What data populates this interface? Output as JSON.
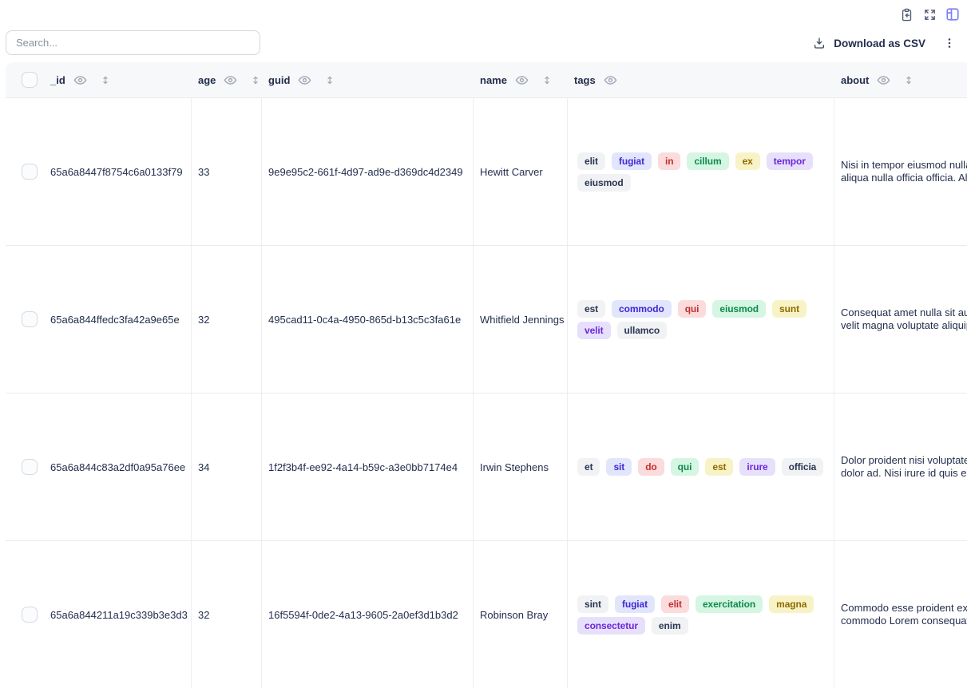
{
  "topbar": {
    "icons": [
      "paste-icon",
      "expand-icon",
      "table-view-icon"
    ],
    "accent_color": "#7c82f5"
  },
  "toolbar": {
    "search_placeholder": "Search...",
    "download_label": "Download as CSV",
    "kebab_icon": "more-options"
  },
  "palette": {
    "gray": {
      "bg": "#f1f2f4",
      "text": "#2b3653"
    },
    "indigo": {
      "bg": "#e1e6fc",
      "text": "#4328d4"
    },
    "red": {
      "bg": "#fbdbdb",
      "text": "#c22f33"
    },
    "green": {
      "bg": "#d5f6e2",
      "text": "#0f8a4d"
    },
    "yellow": {
      "bg": "#f8f3c6",
      "text": "#8f6a00"
    },
    "purple": {
      "bg": "#e7e0fb",
      "text": "#6d28d9"
    }
  },
  "table": {
    "columns": [
      {
        "label": "_id",
        "has_visibility_icon": true,
        "has_sort_icon": true
      },
      {
        "label": "age",
        "has_visibility_icon": true,
        "has_sort_icon": true
      },
      {
        "label": "guid",
        "has_visibility_icon": true,
        "has_sort_icon": true
      },
      {
        "label": "name",
        "has_visibility_icon": true,
        "has_sort_icon": true
      },
      {
        "label": "tags",
        "has_visibility_icon": true,
        "has_sort_icon": false
      },
      {
        "label": "about",
        "has_visibility_icon": true,
        "has_sort_icon": true
      }
    ],
    "rows": [
      {
        "_id": "65a6a8447f8754c6a0133f79",
        "age": "33",
        "guid": "9e9e95c2-661f-4d97-ad9e-d369dc4d2349",
        "name": "Hewitt Carver",
        "tags": [
          {
            "text": "elit",
            "color": "gray"
          },
          {
            "text": "fugiat",
            "color": "indigo"
          },
          {
            "text": "in",
            "color": "red"
          },
          {
            "text": "cillum",
            "color": "green"
          },
          {
            "text": "ex",
            "color": "yellow"
          },
          {
            "text": "tempor",
            "color": "purple"
          },
          {
            "text": "eiusmod",
            "color": "gray"
          }
        ],
        "about": "Nisi in tempor eiusmod nulla\naliqua nulla officia officia. Aliqua"
      },
      {
        "_id": "65a6a844ffedc3fa42a9e65e",
        "age": "32",
        "guid": "495cad11-0c4a-4950-865d-b13c5c3fa61e",
        "name": "Whitfield Jennings",
        "tags": [
          {
            "text": "est",
            "color": "gray"
          },
          {
            "text": "commodo",
            "color": "indigo"
          },
          {
            "text": "qui",
            "color": "red"
          },
          {
            "text": "eiusmod",
            "color": "green"
          },
          {
            "text": "sunt",
            "color": "yellow"
          },
          {
            "text": "velit",
            "color": "purple"
          },
          {
            "text": "ullamco",
            "color": "gray"
          }
        ],
        "about": "Consequat amet nulla sit aute\nvelit magna voluptate aliquip"
      },
      {
        "_id": "65a6a844c83a2df0a95a76ee",
        "age": "34",
        "guid": "1f2f3b4f-ee92-4a14-b59c-a3e0bb7174e4",
        "name": "Irwin Stephens",
        "tags": [
          {
            "text": "et",
            "color": "gray"
          },
          {
            "text": "sit",
            "color": "indigo"
          },
          {
            "text": "do",
            "color": "red"
          },
          {
            "text": "qui",
            "color": "green"
          },
          {
            "text": "est",
            "color": "yellow"
          },
          {
            "text": "irure",
            "color": "purple"
          },
          {
            "text": "officia",
            "color": "gray"
          }
        ],
        "about": "Dolor proident nisi voluptate\ndolor ad. Nisi irure id quis ex"
      },
      {
        "_id": "65a6a844211a19c339b3e3d3",
        "age": "32",
        "guid": "16f5594f-0de2-4a13-9605-2a0ef3d1b3d2",
        "name": "Robinson Bray",
        "tags": [
          {
            "text": "sint",
            "color": "gray"
          },
          {
            "text": "fugiat",
            "color": "indigo"
          },
          {
            "text": "elit",
            "color": "red"
          },
          {
            "text": "exercitation",
            "color": "green"
          },
          {
            "text": "magna",
            "color": "yellow"
          },
          {
            "text": "consectetur",
            "color": "purple"
          },
          {
            "text": "enim",
            "color": "gray"
          }
        ],
        "about": "Commodo esse proident ex\ncommodo Lorem consequat"
      }
    ]
  }
}
